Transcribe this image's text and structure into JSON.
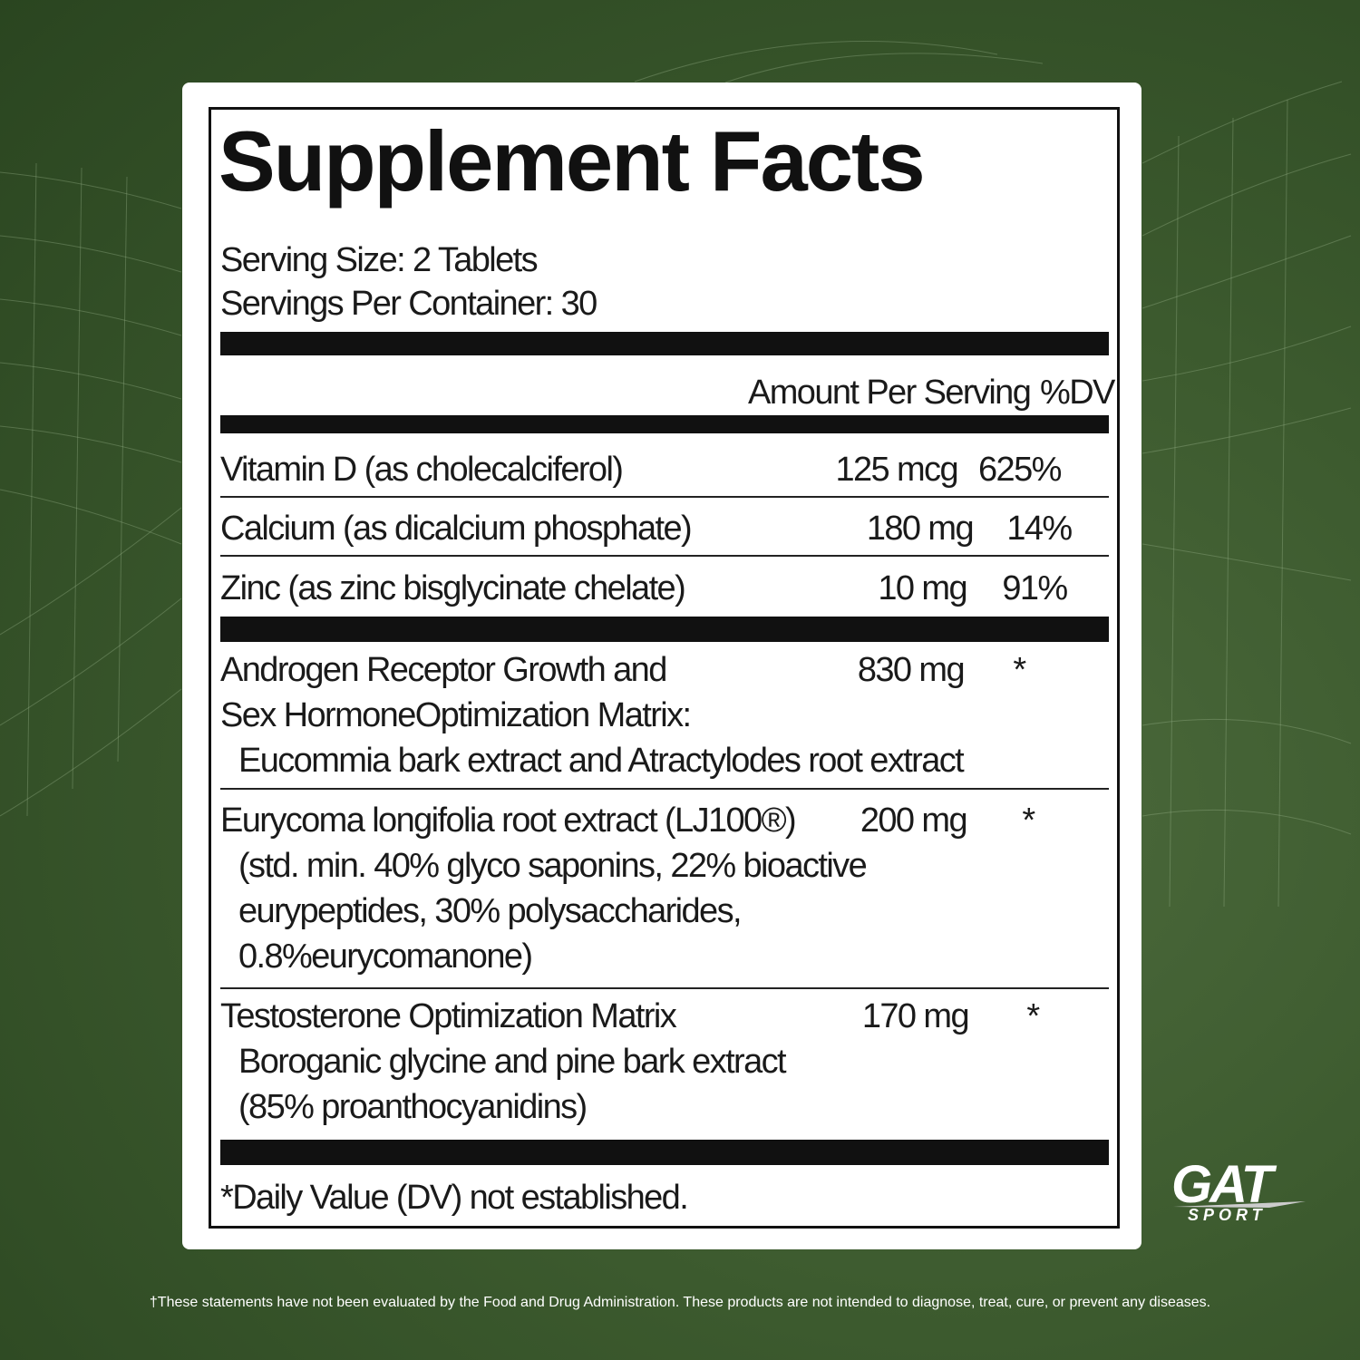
{
  "title": "Supplement Facts",
  "serving_size": "Serving Size: 2 Tablets",
  "servings_per_container": "Servings Per Container: 30",
  "header": {
    "amount": "Amount Per Serving",
    "dv": "%DV"
  },
  "vitamins": [
    {
      "name": "Vitamin D (as cholecalciferol)",
      "amount": "125 mcg",
      "dv": "625%"
    },
    {
      "name": "Calcium (as dicalcium phosphate)",
      "amount": "180 mg",
      "dv": "14%"
    },
    {
      "name": "Zinc (as zinc bisglycinate chelate)",
      "amount": "10 mg",
      "dv": "91%"
    }
  ],
  "blends": [
    {
      "lines": [
        "Androgen Receptor Growth and",
        "Sex HormoneOptimization Matrix:",
        "Eucommia bark extract and Atractylodes root extract"
      ],
      "amount": "830 mg",
      "dv": "*"
    },
    {
      "lines": [
        "Eurycoma longifolia root extract (LJ100®)",
        "(std. min. 40% glyco saponins, 22% bioactive",
        "eurypeptides, 30% polysaccharides,",
        "0.8%eurycomanone)"
      ],
      "amount": "200 mg",
      "dv": "*"
    },
    {
      "lines": [
        "Testosterone Optimization Matrix",
        "Boroganic glycine and pine bark extract",
        "(85% proanthocyanidins)"
      ],
      "amount": "170 mg",
      "dv": "*"
    }
  ],
  "footnote": "*Daily Value (DV) not established.",
  "disclaimer": "†These statements have not been evaluated by the Food and Drug Administration. These products are not intended to diagnose, treat, cure, or prevent any diseases.",
  "logo": {
    "main": "GAT",
    "sub": "SPORT"
  }
}
